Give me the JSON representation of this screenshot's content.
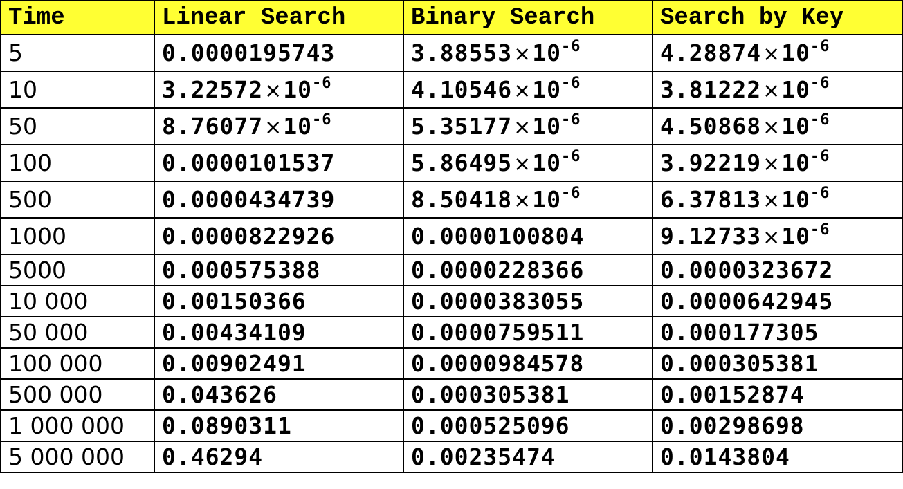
{
  "table": {
    "headers": [
      "Time",
      "Linear Search",
      "Binary Search",
      "Search by Key"
    ],
    "rows": [
      [
        "5",
        "0.0000195743",
        "3.88553|-6",
        "4.28874|-6"
      ],
      [
        "10",
        "3.22572|-6",
        "4.10546|-6",
        "3.81222|-6"
      ],
      [
        "50",
        "8.76077|-6",
        "5.35177|-6",
        "4.50868|-6"
      ],
      [
        "100",
        "0.0000101537",
        "5.86495|-6",
        "3.92219|-6"
      ],
      [
        "500",
        "0.0000434739",
        "8.50418|-6",
        "6.37813|-6"
      ],
      [
        "1000",
        "0.0000822926",
        "0.0000100804",
        "9.12733|-6"
      ],
      [
        "5000",
        "0.000575388",
        "0.0000228366",
        "0.0000323672"
      ],
      [
        "10 000",
        "0.00150366",
        "0.0000383055",
        "0.0000642945"
      ],
      [
        "50 000",
        "0.00434109",
        "0.0000759511",
        "0.000177305"
      ],
      [
        "100 000",
        "0.00902491",
        "0.0000984578",
        "0.000305381"
      ],
      [
        "500 000",
        "0.043626",
        "0.000305381",
        "0.00152874"
      ],
      [
        "1 000 000",
        "0.0890311",
        "0.000525096",
        "0.00298698"
      ],
      [
        "5 000 000",
        "0.46294",
        "0.00235474",
        "0.0143804"
      ]
    ],
    "sci_base": "10",
    "sci_times": "×",
    "header_bg": "#ffff33",
    "border_color": "#000000"
  }
}
